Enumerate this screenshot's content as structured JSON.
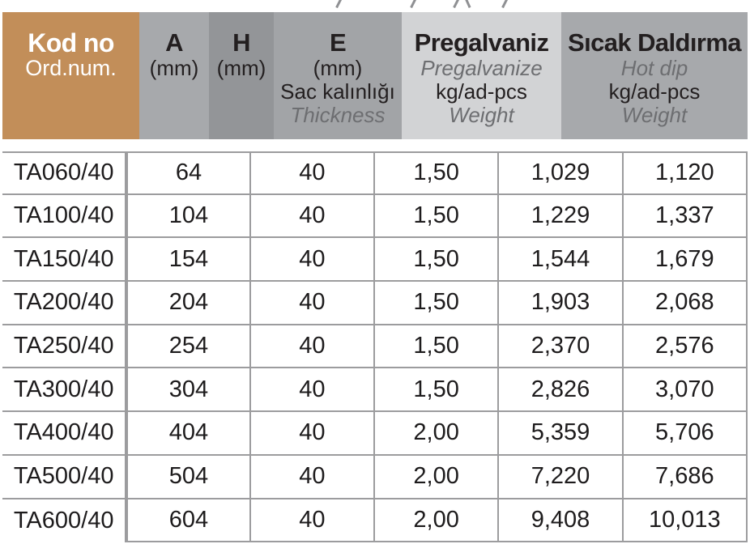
{
  "page": {
    "background": "#ffffff",
    "description": "Product specification table (cable tray catalog), drawing above cropped out"
  },
  "colors": {
    "header_tan": "#c28e59",
    "row_code_tan": "#ecdac6",
    "col_gray_medium": "#a7a9ac",
    "col_gray_dark": "#939598",
    "col_gray_light": "#d2d3d5",
    "grid_border": "#9c9c9e",
    "text_dark": "#231f20",
    "text_gray_italic": "#6d6e71",
    "text_white": "#ffffff"
  },
  "table": {
    "columns": [
      {
        "id": "code",
        "title": "Kod no",
        "subtitle": "Ord.num."
      },
      {
        "id": "a",
        "title": "A",
        "subtitle": "(mm)"
      },
      {
        "id": "h",
        "title": "H",
        "subtitle": "(mm)"
      },
      {
        "id": "e",
        "title": "E",
        "subtitle": "(mm)",
        "line3": "Sac kalınlığı",
        "line4": "Thickness"
      },
      {
        "id": "pregalvaniz",
        "title": "Pregalvaniz",
        "subtitle": "Pregalvanize",
        "line3": "kg/ad-pcs",
        "line4": "Weight"
      },
      {
        "id": "sicak_daldirma",
        "title": "Sıcak Daldırma",
        "subtitle": "Hot dip",
        "line3": "kg/ad-pcs",
        "line4": "Weight"
      }
    ],
    "rows": [
      {
        "code": "TA060/40",
        "a": "64",
        "h": "40",
        "e": "1,50",
        "pre": "1,029",
        "hot": "1,120"
      },
      {
        "code": "TA100/40",
        "a": "104",
        "h": "40",
        "e": "1,50",
        "pre": "1,229",
        "hot": "1,337"
      },
      {
        "code": "TA150/40",
        "a": "154",
        "h": "40",
        "e": "1,50",
        "pre": "1,544",
        "hot": "1,679"
      },
      {
        "code": "TA200/40",
        "a": "204",
        "h": "40",
        "e": "1,50",
        "pre": "1,903",
        "hot": "2,068"
      },
      {
        "code": "TA250/40",
        "a": "254",
        "h": "40",
        "e": "1,50",
        "pre": "2,370",
        "hot": "2,576"
      },
      {
        "code": "TA300/40",
        "a": "304",
        "h": "40",
        "e": "1,50",
        "pre": "2,826",
        "hot": "3,070"
      },
      {
        "code": "TA400/40",
        "a": "404",
        "h": "40",
        "e": "2,00",
        "pre": "5,359",
        "hot": "5,706"
      },
      {
        "code": "TA500/40",
        "a": "504",
        "h": "40",
        "e": "2,00",
        "pre": "7,220",
        "hot": "7,686"
      },
      {
        "code": "TA600/40",
        "a": "604",
        "h": "40",
        "e": "2,00",
        "pre": "9,408",
        "hot": "10,013"
      }
    ]
  }
}
